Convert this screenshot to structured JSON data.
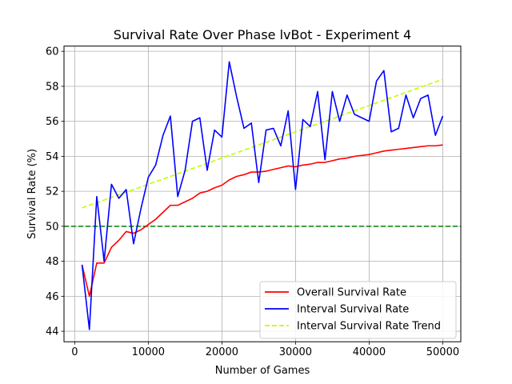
{
  "chart_data": {
    "type": "line",
    "title": "Survival Rate Over Phase lvBot - Experiment 4",
    "xlabel": "Number of Games",
    "ylabel": "Survival Rate (%)",
    "xlim": [
      -1450,
      52450
    ],
    "ylim": [
      43.4,
      60.3
    ],
    "xticks": [
      0,
      10000,
      20000,
      30000,
      40000,
      50000
    ],
    "yticks": [
      44,
      46,
      48,
      50,
      52,
      54,
      56,
      58,
      60
    ],
    "grid": true,
    "legend_position": "lower-right",
    "reference_line": {
      "y": 50,
      "color": "#008000",
      "style": "dashed"
    },
    "x": [
      1000,
      2000,
      3000,
      4000,
      5000,
      6000,
      7000,
      8000,
      9000,
      10000,
      11000,
      12000,
      13000,
      14000,
      15000,
      16000,
      17000,
      18000,
      19000,
      20000,
      21000,
      22000,
      23000,
      24000,
      25000,
      26000,
      27000,
      28000,
      29000,
      30000,
      31000,
      32000,
      33000,
      34000,
      35000,
      36000,
      37000,
      38000,
      39000,
      40000,
      41000,
      42000,
      43000,
      44000,
      45000,
      46000,
      47000,
      48000,
      49000,
      50000
    ],
    "series": [
      {
        "name": "Overall Survival Rate",
        "color": "#ff0000",
        "style": "solid",
        "values": [
          47.8,
          46.0,
          47.9,
          47.9,
          48.8,
          49.2,
          49.7,
          49.6,
          49.8,
          50.1,
          50.4,
          50.8,
          51.2,
          51.2,
          51.4,
          51.6,
          51.9,
          52.0,
          52.2,
          52.35,
          52.65,
          52.85,
          52.95,
          53.1,
          53.1,
          53.15,
          53.25,
          53.35,
          53.45,
          53.4,
          53.5,
          53.55,
          53.65,
          53.65,
          53.75,
          53.85,
          53.9,
          54.0,
          54.05,
          54.1,
          54.2,
          54.3,
          54.35,
          54.4,
          54.45,
          54.5,
          54.55,
          54.6,
          54.6,
          54.65
        ]
      },
      {
        "name": "Interval Survival Rate",
        "color": "#0000ff",
        "style": "solid",
        "values": [
          47.8,
          44.1,
          51.7,
          48.0,
          52.4,
          51.6,
          52.1,
          49.0,
          51.0,
          52.8,
          53.5,
          55.2,
          56.3,
          51.7,
          53.2,
          56.0,
          56.2,
          53.2,
          55.5,
          55.1,
          59.4,
          57.4,
          55.6,
          55.9,
          52.5,
          55.5,
          55.6,
          54.6,
          56.6,
          52.1,
          56.1,
          55.7,
          57.7,
          53.8,
          57.7,
          56.0,
          57.5,
          56.4,
          56.2,
          56.0,
          58.3,
          58.9,
          55.4,
          55.6,
          57.5,
          56.2,
          57.3,
          57.5,
          55.2,
          56.3
        ]
      },
      {
        "name": "Interval Survival Rate Trend",
        "color": "#c0ff00",
        "style": "dashed",
        "values": [
          51.05,
          51.2,
          51.35,
          51.5,
          51.65,
          51.8,
          51.95,
          52.1,
          52.25,
          52.4,
          52.55,
          52.7,
          52.85,
          53.0,
          53.15,
          53.3,
          53.45,
          53.6,
          53.75,
          53.9,
          54.05,
          54.2,
          54.35,
          54.5,
          54.65,
          54.8,
          54.95,
          55.1,
          55.25,
          55.4,
          55.55,
          55.7,
          55.85,
          56.0,
          56.15,
          56.3,
          56.45,
          56.6,
          56.75,
          56.9,
          57.05,
          57.2,
          57.35,
          57.5,
          57.65,
          57.8,
          57.95,
          58.1,
          58.25,
          58.4
        ]
      }
    ]
  }
}
